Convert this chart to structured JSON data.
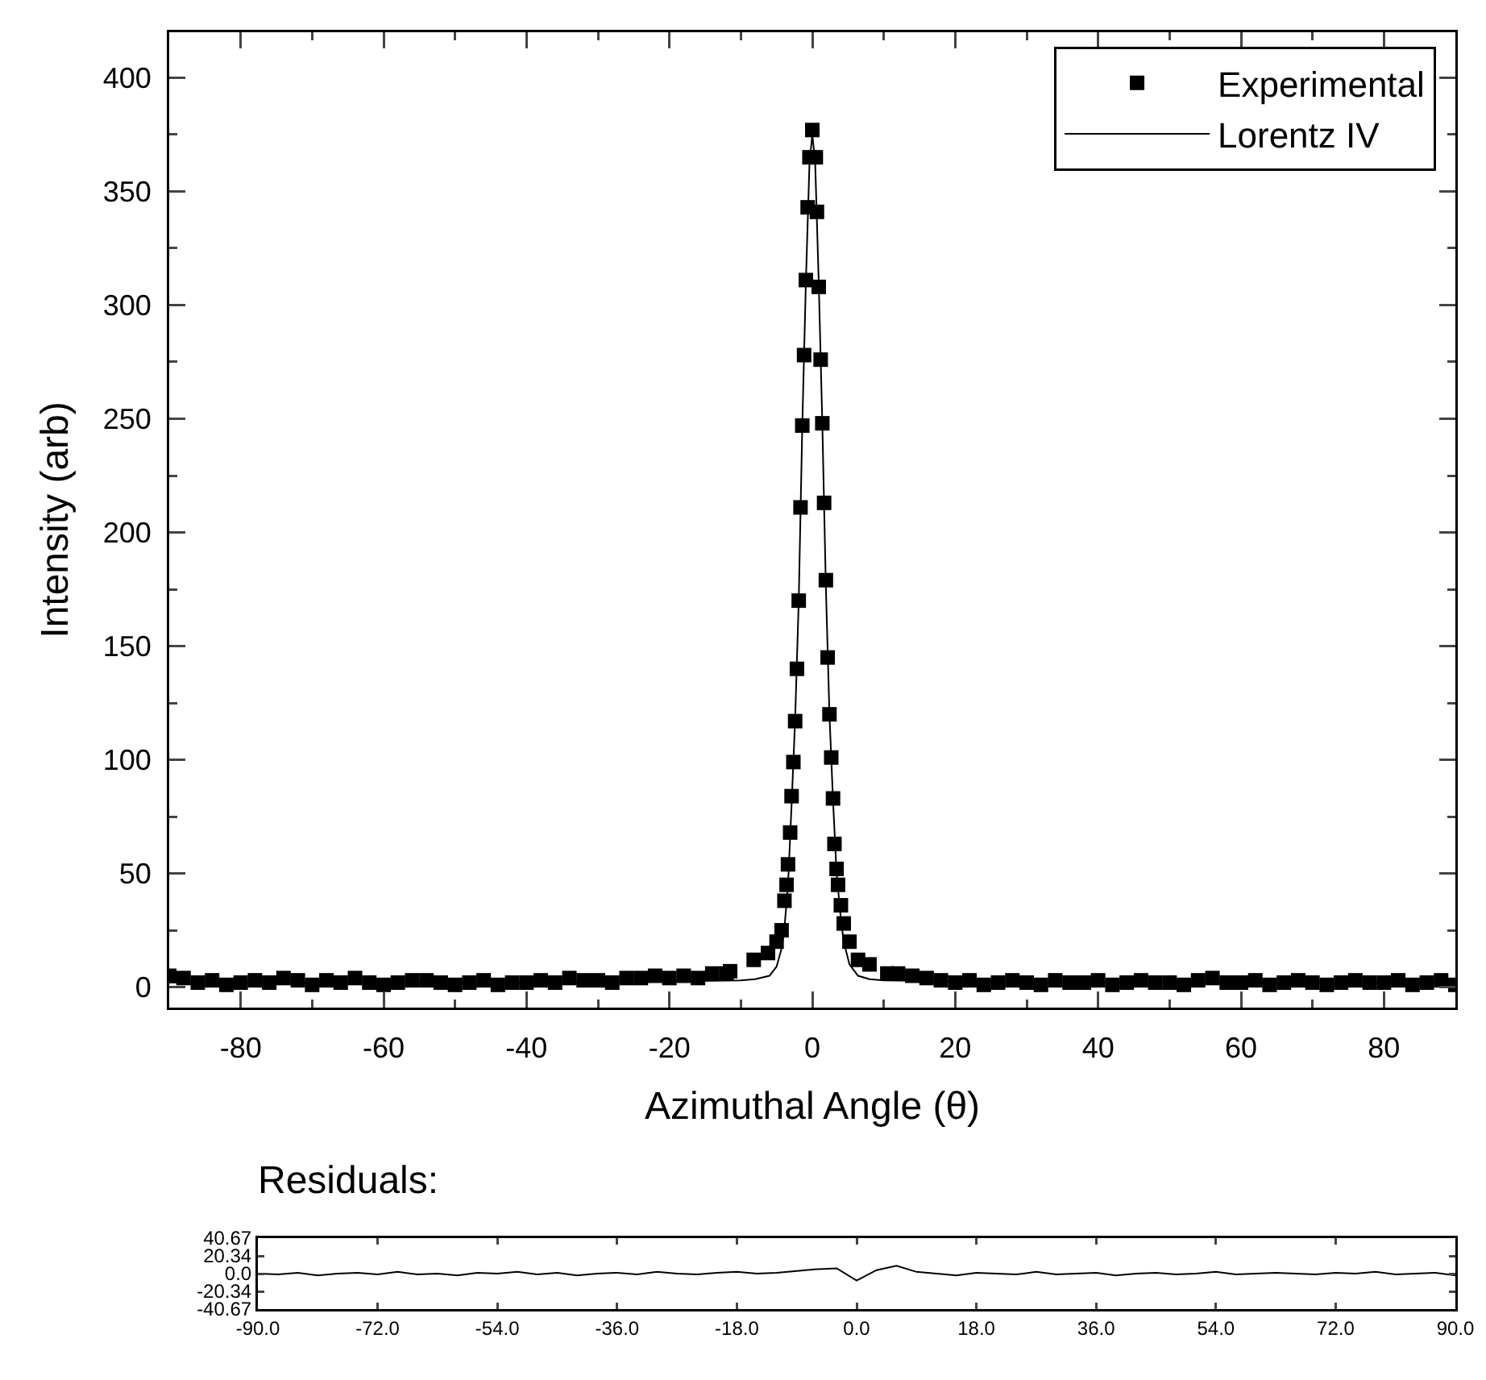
{
  "chart_data": [
    {
      "type": "scatter",
      "xlabel": "Azimuthal Angle (θ)",
      "ylabel": "Intensity (arb)",
      "xlim": [
        -90,
        90
      ],
      "ylim": [
        -9,
        420
      ],
      "xticks": [
        -80,
        -60,
        -40,
        -20,
        0,
        20,
        40,
        60,
        80
      ],
      "yticks": [
        0,
        50,
        100,
        150,
        200,
        250,
        300,
        350,
        400
      ],
      "grid": false,
      "legend": "top right",
      "series": [
        {
          "name": "Experimental",
          "color": "#000000",
          "marker": "square",
          "x": [
            -90,
            -88,
            -86,
            -84,
            -82,
            -80,
            -78,
            -76,
            -74,
            -72,
            -70,
            -68,
            -66,
            -64,
            -62,
            -60,
            -58,
            -56,
            -54,
            -52,
            -50,
            -48,
            -46,
            -44,
            -42,
            -40,
            -38,
            -36,
            -34,
            -32,
            -30,
            -28,
            -26,
            -24,
            -22,
            -20,
            -18,
            -16,
            -14,
            -12,
            -11.5,
            -8.2,
            -6.2,
            -5,
            -4.3,
            -3.9,
            -3.6,
            -3.4,
            -3.1,
            -2.9,
            -2.65,
            -2.4,
            -2.15,
            -1.9,
            -1.65,
            -1.4,
            -1.15,
            -0.9,
            -0.65,
            -0.4,
            0,
            0.49,
            0.65,
            0.9,
            1.17,
            1.4,
            1.65,
            1.9,
            2.15,
            2.4,
            2.65,
            2.9,
            3.1,
            3.4,
            3.6,
            4,
            4.4,
            5.2,
            6.4,
            8,
            10.5,
            12,
            14,
            16,
            18,
            20,
            22,
            24,
            26,
            28,
            30,
            32,
            34,
            36,
            38,
            40,
            42,
            44,
            46,
            48,
            50,
            52,
            54,
            56,
            58,
            60,
            62,
            64,
            66,
            68,
            70,
            72,
            74,
            76,
            78,
            80,
            82,
            84,
            86,
            88,
            90
          ],
          "values": [
            5,
            4,
            2,
            3,
            1,
            2,
            3,
            2,
            4,
            3,
            1,
            3,
            2,
            4,
            2,
            1,
            2,
            3,
            3,
            2,
            1,
            2,
            3,
            1,
            2,
            2,
            3,
            2,
            4,
            3,
            3,
            2,
            4,
            4,
            5,
            4,
            5,
            4,
            6,
            6,
            7,
            12,
            15,
            20,
            25,
            38,
            45,
            54,
            68,
            84,
            99,
            117,
            140,
            170,
            211,
            247,
            278,
            311,
            343,
            365,
            377,
            365,
            341,
            308,
            276,
            248,
            213,
            179,
            145,
            120,
            101,
            83,
            63,
            52,
            45,
            36,
            28,
            20,
            12,
            10,
            6,
            6,
            5,
            4,
            3,
            2,
            3,
            1,
            2,
            3,
            2,
            1,
            3,
            2,
            2,
            3,
            1,
            2,
            3,
            2,
            2,
            1,
            3,
            4,
            2,
            2,
            3,
            1,
            2,
            3,
            2,
            1,
            2,
            3,
            2,
            2,
            3,
            1,
            2,
            3,
            1
          ]
        },
        {
          "name": "Lorentz IV",
          "type": "line",
          "color": "#000000",
          "line_style": "solid",
          "marker": "none",
          "x": [
            -90,
            -40,
            -20,
            -10,
            -8,
            -6,
            -5,
            -4.3,
            -3.9,
            -3.4,
            -2.9,
            -2.4,
            -1.9,
            -1.4,
            -0.9,
            -0.4,
            0,
            0.4,
            0.9,
            1.4,
            1.9,
            2.4,
            2.9,
            3.4,
            4,
            4.4,
            5.2,
            6.4,
            8,
            10,
            20,
            40,
            90
          ],
          "values": [
            2,
            2,
            2.5,
            3,
            3.5,
            5,
            9,
            17,
            26,
            45,
            80,
            118,
            170,
            247,
            310,
            362,
            375,
            363,
            310,
            248,
            176,
            120,
            82,
            50,
            30,
            20,
            10,
            5,
            3.5,
            3,
            2.5,
            2,
            2
          ]
        }
      ]
    },
    {
      "type": "line",
      "title": "Residuals:",
      "xlim": [
        -90,
        90
      ],
      "ylim": [
        -40.67,
        40.67
      ],
      "xticks": [
        {
          "value": -90,
          "label": "-90.0"
        },
        {
          "value": -72,
          "label": "-72.0"
        },
        {
          "value": -54,
          "label": "-54.0"
        },
        {
          "value": -36,
          "label": "-36.0"
        },
        {
          "value": -18,
          "label": "-18.0"
        },
        {
          "value": 0,
          "label": "0.0"
        },
        {
          "value": 18,
          "label": "18.0"
        },
        {
          "value": 36,
          "label": "36.0"
        },
        {
          "value": 54,
          "label": "54.0"
        },
        {
          "value": 72,
          "label": "72.0"
        },
        {
          "value": 90,
          "label": "90.0"
        }
      ],
      "yticks": [
        40.67,
        20.34,
        {
          "value": 0,
          "label": "0.0"
        },
        -20.34,
        -40.67
      ],
      "grid": false,
      "legend": false,
      "series": [
        {
          "color": "#000000",
          "x": [
            -90,
            -87,
            -84,
            -81,
            -78,
            -75,
            -72,
            -69,
            -66,
            -63,
            -60,
            -57,
            -54,
            -51,
            -48,
            -45,
            -42,
            -39,
            -36,
            -33,
            -30,
            -27,
            -24,
            -21,
            -18,
            -15,
            -12,
            -9,
            -6,
            -3,
            0,
            3,
            6,
            9,
            12,
            15,
            18,
            21,
            24,
            27,
            30,
            33,
            36,
            39,
            42,
            45,
            48,
            51,
            54,
            57,
            60,
            63,
            66,
            69,
            72,
            75,
            78,
            81,
            84,
            87,
            90
          ],
          "values": [
            0,
            -1,
            1,
            -2,
            0,
            1,
            -1,
            2,
            -1,
            0,
            -2,
            1,
            0,
            2,
            -1,
            1,
            -2,
            0,
            1,
            -1,
            2,
            0,
            -1,
            1,
            2,
            0,
            1,
            3,
            5,
            6,
            -8,
            4,
            9,
            2,
            0,
            -2,
            1,
            0,
            -1,
            2,
            -1,
            0,
            1,
            -2,
            0,
            1,
            -1,
            0,
            2,
            -1,
            0,
            1,
            0,
            -1,
            1,
            0,
            2,
            -1,
            0,
            1,
            -2
          ]
        }
      ]
    }
  ]
}
